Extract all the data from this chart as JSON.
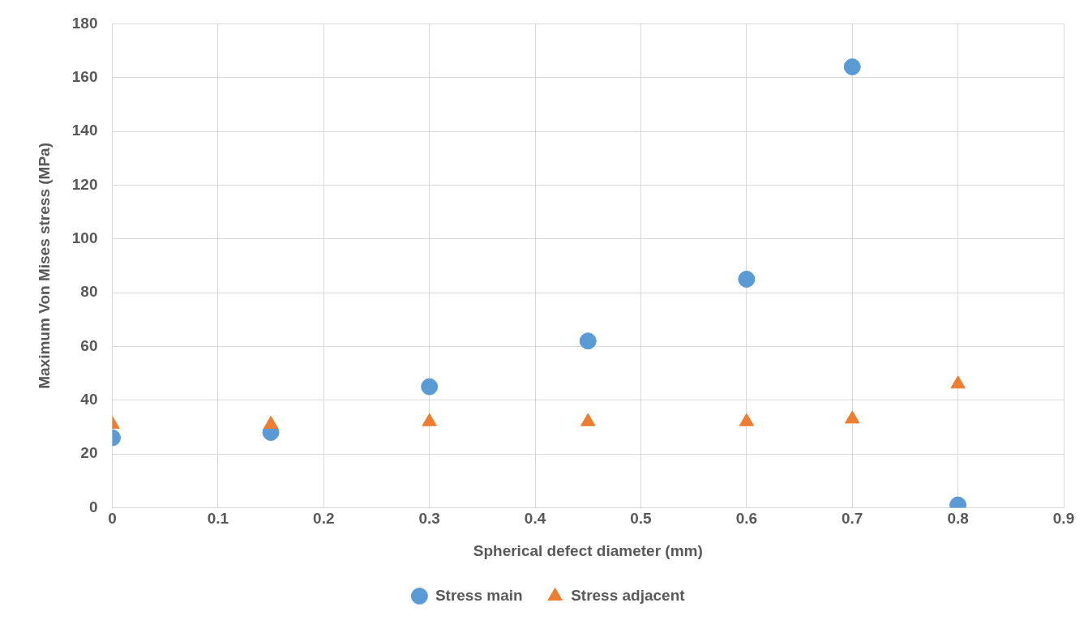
{
  "chart_data": {
    "type": "scatter",
    "xlabel": "Spherical defect diameter (mm)",
    "ylabel": "Maximum Von Mises stress (MPa)",
    "x": [
      0,
      0.15,
      0.3,
      0.45,
      0.6,
      0.7,
      0.8
    ],
    "series": [
      {
        "name": "Stress main",
        "color": "#5b9bd5",
        "marker": "circle",
        "values": [
          26,
          28,
          45,
          62,
          85,
          164,
          1
        ]
      },
      {
        "name": "Stress adjacent",
        "color": "#ed7d31",
        "marker": "triangle",
        "values": [
          31,
          31,
          32,
          32,
          32,
          33,
          46
        ]
      }
    ],
    "xlim": [
      0,
      0.9
    ],
    "xticks": [
      0,
      0.1,
      0.2,
      0.3,
      0.4,
      0.5,
      0.6,
      0.7,
      0.8,
      0.9
    ],
    "ylim": [
      0,
      180
    ],
    "yticks": [
      0,
      20,
      40,
      60,
      80,
      100,
      120,
      140,
      160,
      180
    ],
    "grid": true,
    "legend": "bottom"
  }
}
